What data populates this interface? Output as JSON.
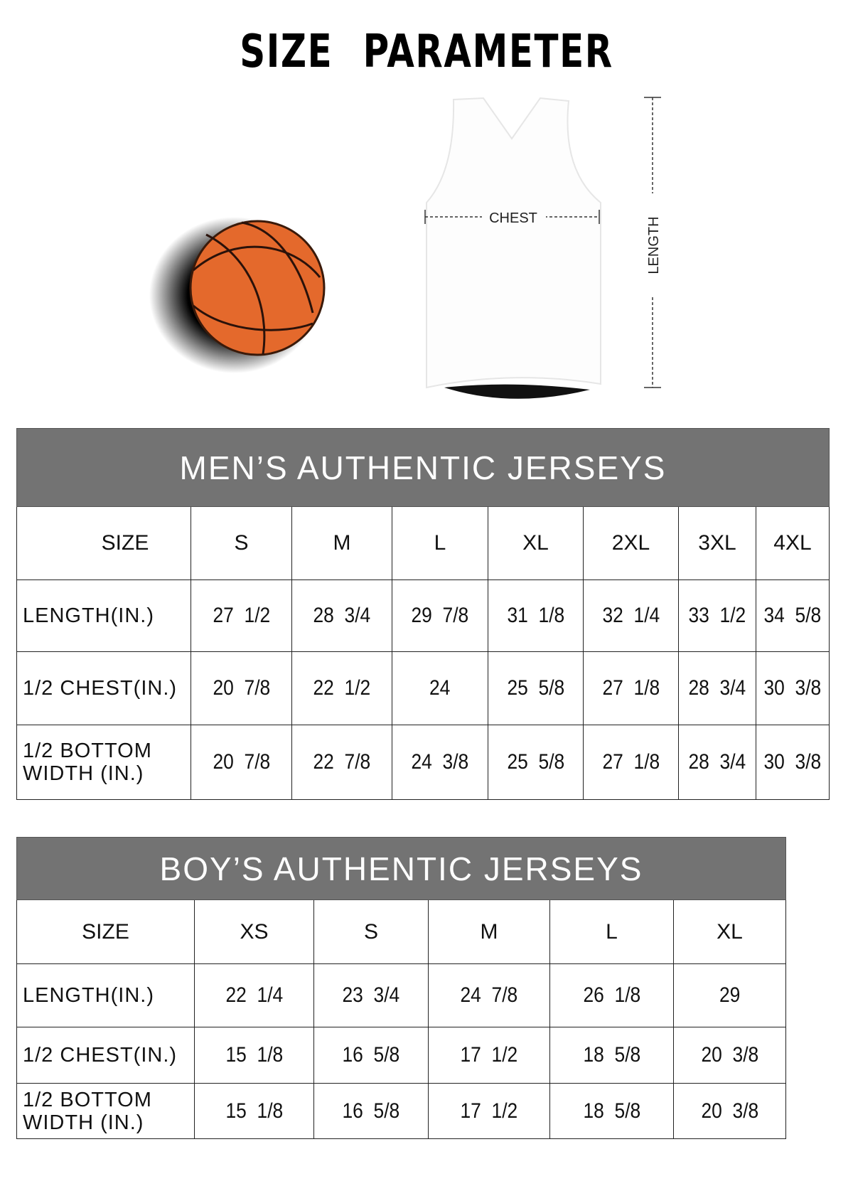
{
  "title": "SIZE PARAMETER",
  "diagram": {
    "chest_label": "CHEST",
    "length_label": "LENGTH",
    "ball_color": "#e4692c",
    "header_color": "#737373"
  },
  "men": {
    "title": "MEN’S AUTHENTIC JERSEYS",
    "size_label": "SIZE",
    "sizes": [
      "S",
      "M",
      "L",
      "XL",
      "2XL",
      "3XL",
      "4XL"
    ],
    "rows": [
      {
        "label": "LENGTH(IN.)",
        "values": [
          "27  1/2",
          "28  3/4",
          "29  7/8",
          "31  1/8",
          "32  1/4",
          "33  1/2",
          "34  5/8"
        ]
      },
      {
        "label": "1/2 CHEST(IN.)",
        "values": [
          "20  7/8",
          "22  1/2",
          "24",
          "25  5/8",
          "27  1/8",
          "28  3/4",
          "30  3/8"
        ]
      },
      {
        "label": "1/2 BOTTOM WIDTH  (IN.)",
        "values": [
          "20  7/8",
          "22  7/8",
          "24  3/8",
          "25  5/8",
          "27  1/8",
          "28  3/4",
          "30  3/8"
        ]
      }
    ]
  },
  "boy": {
    "title": "BOY’S AUTHENTIC JERSEYS",
    "size_label": "SIZE",
    "sizes": [
      "XS",
      "S",
      "M",
      "L",
      "XL"
    ],
    "rows": [
      {
        "label": "LENGTH(IN.)",
        "values": [
          "22  1/4",
          "23  3/4",
          "24  7/8",
          "26  1/8",
          "29"
        ]
      },
      {
        "label": "1/2 CHEST(IN.)",
        "values": [
          "15  1/8",
          "16  5/8",
          "17  1/2",
          "18  5/8",
          "20  3/8"
        ]
      },
      {
        "label": "1/2 BOTTOM WIDTH  (IN.)",
        "values": [
          "15  1/8",
          "16  5/8",
          "17  1/2",
          "18  5/8",
          "20  3/8"
        ]
      }
    ]
  }
}
